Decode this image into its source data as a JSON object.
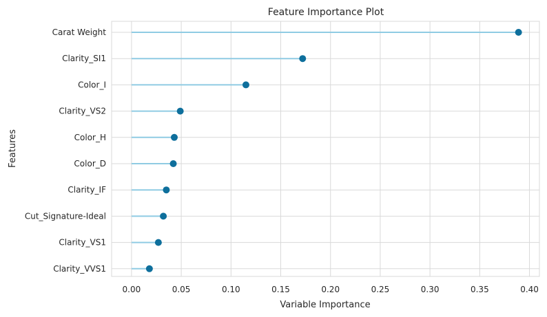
{
  "chart_data": {
    "type": "lollipop",
    "title": "Feature Importance Plot",
    "xlabel": "Variable Importance",
    "ylabel": "Features",
    "xlim": [
      -0.02,
      0.41
    ],
    "xticks": [
      0.0,
      0.05,
      0.1,
      0.15,
      0.2,
      0.25,
      0.3,
      0.35,
      0.4
    ],
    "xtick_labels": [
      "0.00",
      "0.05",
      "0.10",
      "0.15",
      "0.20",
      "0.25",
      "0.30",
      "0.35",
      "0.40"
    ],
    "grid": true,
    "categories": [
      "Carat Weight",
      "Clarity_SI1",
      "Color_I",
      "Clarity_VS2",
      "Color_H",
      "Color_D",
      "Clarity_IF",
      "Cut_Signature-Ideal",
      "Clarity_VS1",
      "Clarity_VVS1"
    ],
    "values": [
      0.389,
      0.172,
      0.115,
      0.049,
      0.043,
      0.042,
      0.035,
      0.032,
      0.027,
      0.018
    ],
    "colors": {
      "stem": "#8fcbe3",
      "marker": "#0e6f9c",
      "grid": "#d9d9d9",
      "text": "#262626"
    }
  }
}
